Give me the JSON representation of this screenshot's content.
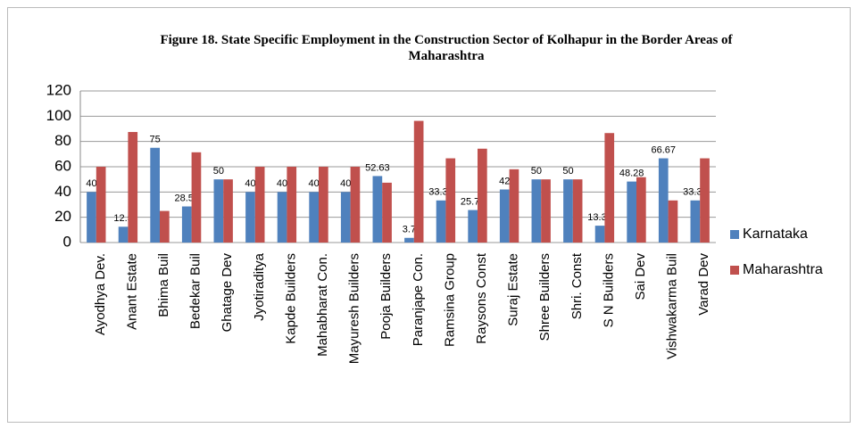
{
  "chart_data": {
    "type": "bar",
    "title": "Figure 18. State Specific Employment in the Construction Sector of Kolhapur in the Border Areas of Maharashtra",
    "categories": [
      "Ayodhya Dev.",
      "Anant Estate",
      "Bhima Buil",
      "Bedekar Buil",
      "Ghatage Dev",
      "Jyotiraditya",
      "Kapde Builders",
      "Mahabharat Con.",
      "Mayuresh Builders",
      "Pooja Builders",
      "Paranjape Con.",
      "Ramsina Group",
      "Raysons Const",
      "Suraj Estate",
      "Shree Builders",
      "Shri. Const",
      "S N Builders",
      "Sai Dev",
      "Vishwakarma Buil",
      "Varad Dev"
    ],
    "series": [
      {
        "name": "Karnataka",
        "color": "#4f81bd",
        "values": [
          40,
          12.5,
          75,
          28.57,
          50,
          40,
          40,
          40,
          40,
          52.63,
          3.7,
          33.33,
          25.71,
          42,
          50,
          50,
          13.33,
          48.28,
          66.67,
          33.33
        ]
      },
      {
        "name": "Maharashtra",
        "color": "#c0504d",
        "values": [
          60,
          87.5,
          25,
          71.43,
          50,
          60,
          60,
          60,
          60,
          47.37,
          96.3,
          66.67,
          74.29,
          58,
          50,
          50,
          86.67,
          51.72,
          33.33,
          66.67
        ]
      }
    ],
    "ylim": [
      0,
      120
    ],
    "yticks": [
      0,
      20,
      40,
      60,
      80,
      100,
      120
    ],
    "grid": true,
    "legend": "right"
  }
}
